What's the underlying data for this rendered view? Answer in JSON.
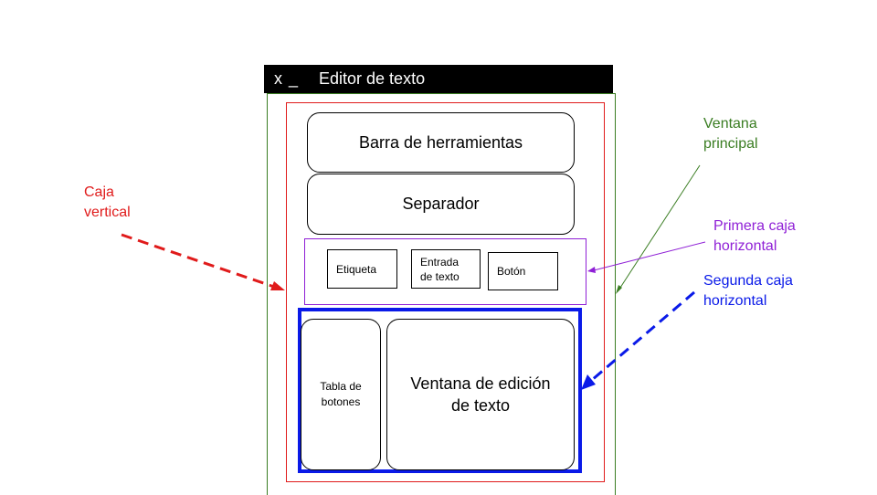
{
  "window": {
    "controls": "x _",
    "title": "Editor de texto"
  },
  "boxes": {
    "toolbar": "Barra de herramientas",
    "separator": "Separador",
    "label": "Etiqueta",
    "entry": [
      "Entrada",
      "de texto"
    ],
    "button": "Botón",
    "button_table": [
      "Tabla de",
      "botones"
    ],
    "edit_window": [
      "Ventana de edición",
      "de texto"
    ]
  },
  "annotations": {
    "vertical_box": [
      "Caja",
      "vertical"
    ],
    "main_window": [
      "Ventana",
      "principal"
    ],
    "first_hbox": [
      "Primera caja",
      "horizontal"
    ],
    "second_hbox": [
      "Segunda caja",
      "horizontal"
    ]
  },
  "colors": {
    "vertical_box": "#e01b1b",
    "main_window": "#3a7d22",
    "first_hbox": "#8f1fd6",
    "second_hbox": "#0a1ae8",
    "title_bar": "#000000"
  }
}
